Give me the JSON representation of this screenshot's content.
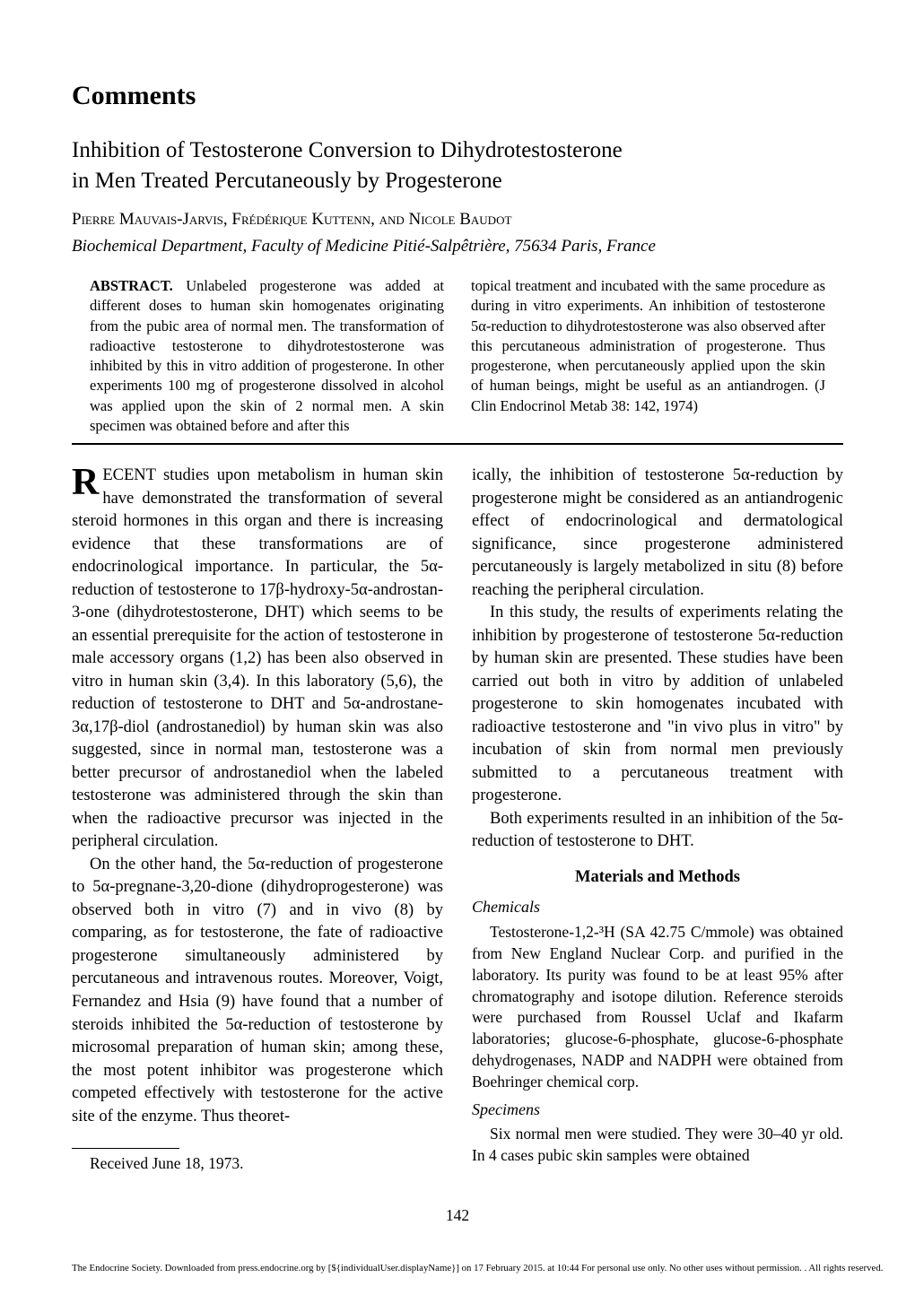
{
  "heading": "Comments",
  "title1": "Inhibition of Testosterone Conversion to Dihydrotestosterone",
  "title2": "in Men Treated Percutaneously by Progesterone",
  "authors": "Pierre Mauvais-Jarvis, Frédérique Kuttenn, and Nicole Baudot",
  "affiliation": "Biochemical Department, Faculty of Medicine Pitié-Salpêtrière, 75634 Paris, France",
  "abstract_label": "ABSTRACT.",
  "abstract_left": " Unlabeled progesterone was added at different doses to human skin homogenates originating from the pubic area of normal men. The transformation of radioactive testosterone to dihydrotestosterone was inhibited by this in vitro addition of progesterone. In other experiments 100 mg of progesterone dissolved in alcohol was applied upon the skin of 2 normal men. A skin specimen was obtained before and after this",
  "abstract_right": "topical treatment and incubated with the same procedure as during in vitro experiments. An inhibition of testosterone 5α-reduction to dihydrotestosterone was also observed after this percutaneous administration of progesterone. Thus progesterone, when percutaneously applied upon the skin of human beings, might be useful as an antiandrogen. (J Clin Endocrinol Metab 38: 142, 1974)",
  "dropcap": "R",
  "para1": "ECENT studies upon metabolism in human skin have demonstrated the transformation of several steroid hormones in this organ and there is increasing evidence that these transformations are of endocrinological importance. In particular, the 5α-reduction of testosterone to 17β-hydroxy-5α-androstan-3-one (dihydrotestosterone, DHT) which seems to be an essential prerequisite for the action of testosterone in male accessory organs (1,2) has been also observed in vitro in human skin (3,4). In this laboratory (5,6), the reduction of testosterone to DHT and 5α-androstane-3α,17β-diol (androstanediol) by human skin was also suggested, since in normal man, testosterone was a better precursor of androstanediol when the labeled testosterone was administered through the skin than when the radioactive precursor was injected in the peripheral circulation.",
  "para2": "On the other hand, the 5α-reduction of progesterone to 5α-pregnane-3,20-dione (dihydroprogesterone) was observed both in vitro (7) and in vivo (8) by comparing, as for testosterone, the fate of radioactive progesterone simultaneously administered by percutaneous and intravenous routes. Moreover, Voigt, Fernandez and Hsia (9) have found that a number of steroids inhibited the 5α-reduction of testosterone by microsomal preparation of human skin; among these, the most potent inhibitor was progesterone which competed effectively with testosterone for the active site of the enzyme. Thus theoret-",
  "received": "Received June 18, 1973.",
  "para3": "ically, the inhibition of testosterone 5α-reduction by progesterone might be considered as an antiandrogenic effect of endocrinological and dermatological significance, since progesterone administered percutaneously is largely metabolized in situ (8) before reaching the peripheral circulation.",
  "para4": "In this study, the results of experiments relating the inhibition by progesterone of testosterone 5α-reduction by human skin are presented. These studies have been carried out both in vitro by addition of unlabeled progesterone to skin homogenates incubated with radioactive testosterone and \"in vivo plus in vitro\" by incubation of skin from normal men previously submitted to a percutaneous treatment with progesterone.",
  "para5": "Both experiments resulted in an inhibition of the 5α-reduction of testosterone to DHT.",
  "methods_heading": "Materials and Methods",
  "chemicals_heading": "Chemicals",
  "chemicals_text": "Testosterone-1,2-³H (SA 42.75 C/mmole) was obtained from New England Nuclear Corp. and purified in the laboratory. Its purity was found to be at least 95% after chromatography and isotope dilution. Reference steroids were purchased from Roussel Uclaf and Ikafarm laboratories; glucose-6-phosphate, glucose-6-phosphate dehydrogenases, NADP and NADPH were obtained from Boehringer chemical corp.",
  "specimens_heading": "Specimens",
  "specimens_text": "Six normal men were studied. They were 30–40 yr old. In 4 cases pubic skin samples were obtained",
  "page_number": "142",
  "footer": "The Endocrine Society. Downloaded from press.endocrine.org by [${individualUser.displayName}] on 17 February 2015. at 10:44 For personal use only. No other uses without permission. . All rights reserved."
}
